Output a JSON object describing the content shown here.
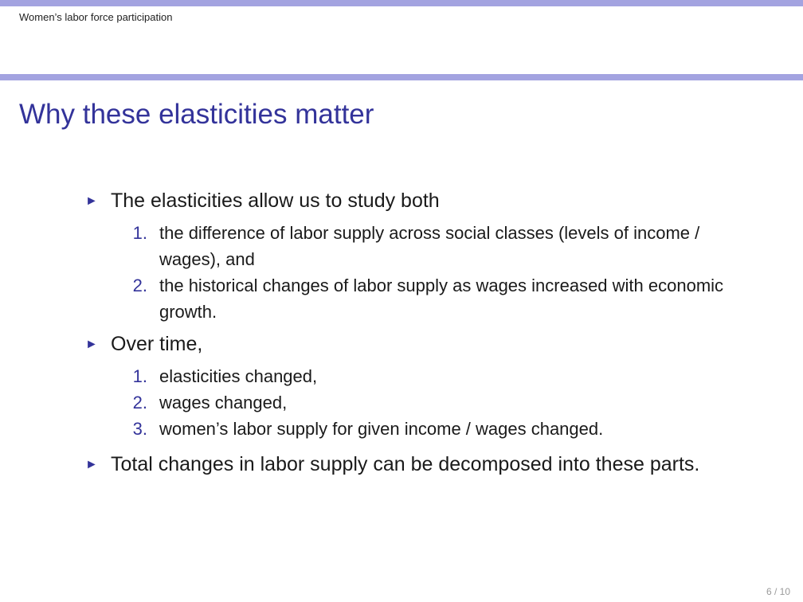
{
  "header": {
    "section": "Women’s labor force participation"
  },
  "frame": {
    "title": "Why these elasticities matter"
  },
  "bullets": [
    {
      "text": "The elasticities allow us to study both",
      "items": [
        {
          "num": "1.",
          "text": "the difference of labor supply across social classes (levels of income / wages), and"
        },
        {
          "num": "2.",
          "text": "the historical changes of labor supply as wages increased with economic growth."
        }
      ]
    },
    {
      "text": "Over time,",
      "items": [
        {
          "num": "1.",
          "text": "elasticities changed,"
        },
        {
          "num": "2.",
          "text": "wages changed,"
        },
        {
          "num": "3.",
          "text": "women’s labor supply for given income / wages changed."
        }
      ]
    },
    {
      "text": "Total changes in labor supply can be decomposed into these parts.",
      "items": []
    }
  ],
  "footer": {
    "page": "6 / 10"
  },
  "colors": {
    "bar": "#a3a3e0",
    "accent": "#33339a"
  },
  "icons": {
    "bullet": "triangle-right-icon"
  }
}
